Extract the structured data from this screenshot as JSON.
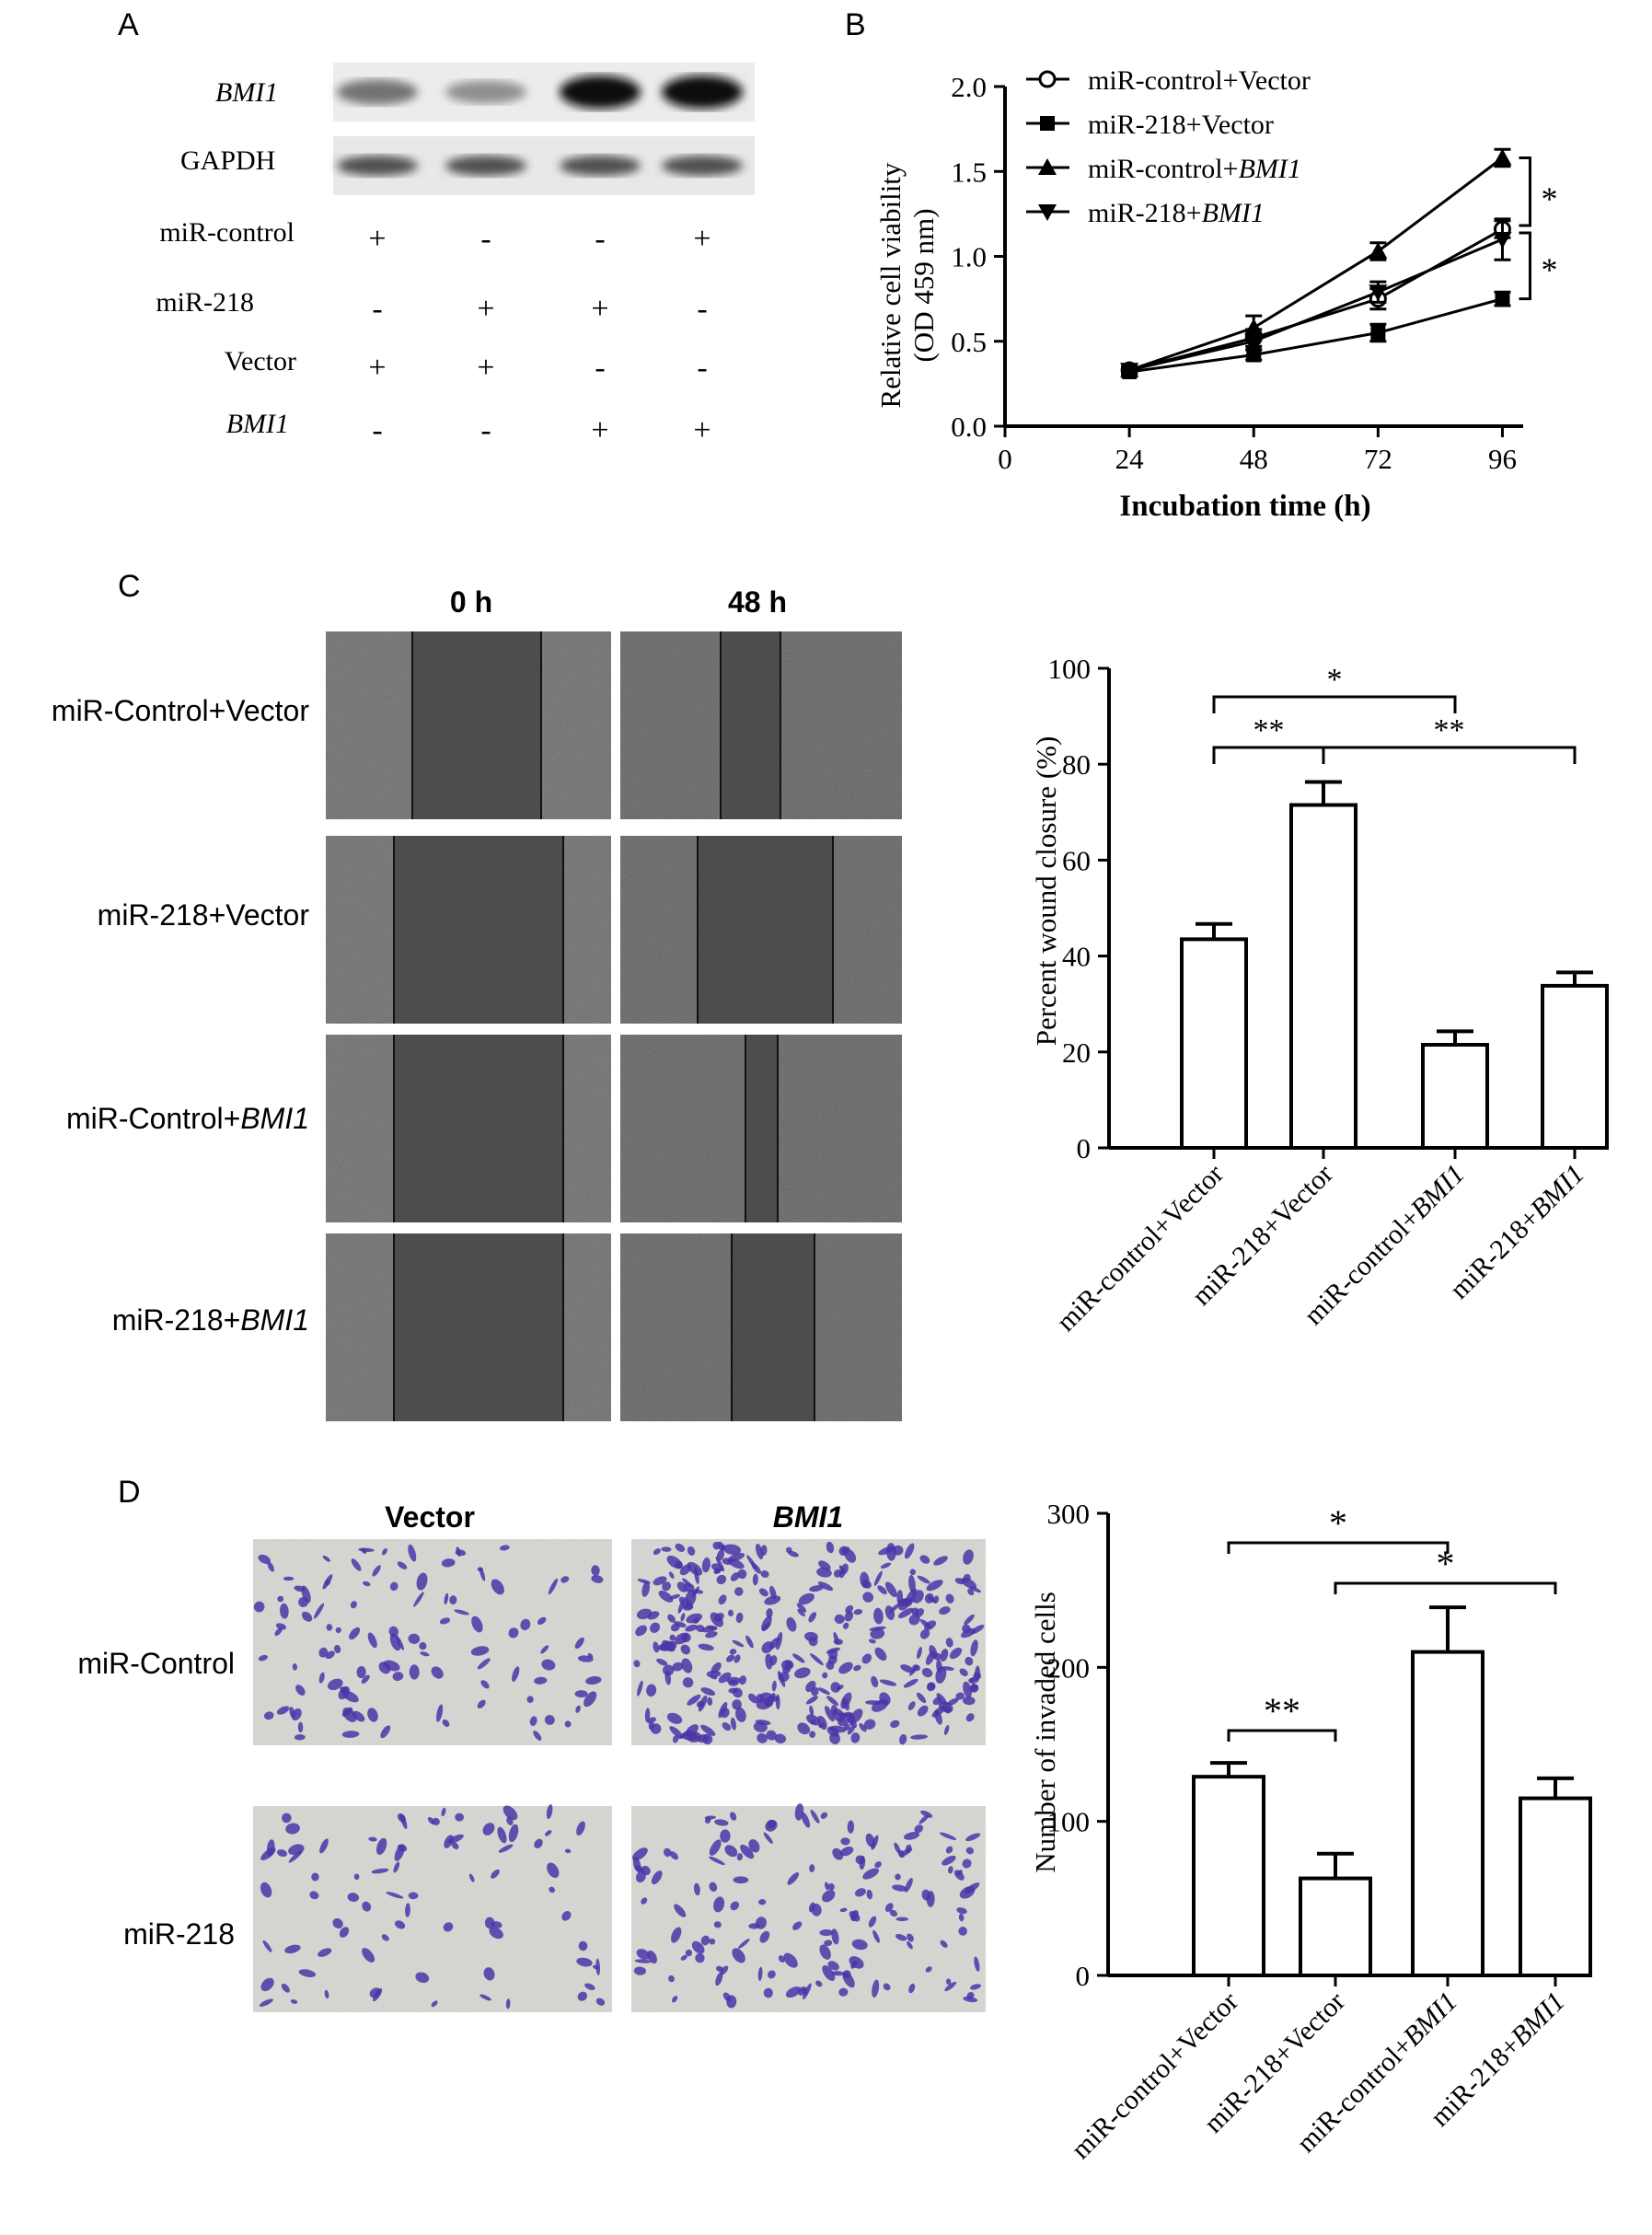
{
  "panel_letters": {
    "a": "A",
    "b": "B",
    "c": "C",
    "d": "D"
  },
  "panel_a": {
    "blot_labels": [
      "BMI1",
      "GAPDH"
    ],
    "condition_rows": [
      {
        "label": "miR-control",
        "marks": [
          "+",
          "-",
          "-",
          "+"
        ]
      },
      {
        "label": "miR-218",
        "marks": [
          "-",
          "+",
          "+",
          "-"
        ]
      },
      {
        "label": "Vector",
        "marks": [
          "+",
          "+",
          "-",
          "-"
        ]
      },
      {
        "label": "BMI1",
        "marks": [
          "-",
          "-",
          "+",
          "+"
        ]
      }
    ],
    "bmi1_band_intensity": [
      0.45,
      0.3,
      1.0,
      1.0
    ],
    "gapdh_band_intensity": [
      0.8,
      0.8,
      0.8,
      0.8
    ]
  },
  "panel_c_images": {
    "col_labels": [
      "0 h",
      "48 h"
    ],
    "row_labels": [
      {
        "prefix": "miR-Control+",
        "italic": "Vector",
        "plain": true
      },
      {
        "prefix": "miR-218+",
        "italic": "Vector",
        "plain": true
      },
      {
        "prefix": "miR-Control+",
        "italic": "BMI1",
        "plain": false
      },
      {
        "prefix": "miR-218+",
        "italic": "BMI1",
        "plain": false
      }
    ]
  },
  "panel_d_images": {
    "col_labels": [
      "Vector",
      "BMI1"
    ],
    "row_labels": [
      "miR-Control",
      "miR-218"
    ]
  },
  "chart_data": [
    {
      "type": "line",
      "panel": "B",
      "xlabel": "Incubation time (h)",
      "ylabel_line1": "Relative cell viability",
      "ylabel_line2": "(OD 459 nm)",
      "x": [
        24,
        48,
        72,
        96
      ],
      "xticks": [
        0,
        24,
        48,
        72,
        96
      ],
      "yticks": [
        0.0,
        0.5,
        1.0,
        1.5,
        2.0
      ],
      "ytick_labels": [
        "0.0",
        "0.5",
        "1.0",
        "1.5",
        "2.0"
      ],
      "ylim": [
        0,
        2.0
      ],
      "xlim": [
        0,
        100
      ],
      "legend_position": "top-left",
      "series": [
        {
          "name_prefix": "miR-control+",
          "name_italic": "",
          "name_plain": "Vector",
          "marker": "circle",
          "values": [
            0.33,
            0.52,
            0.75,
            1.16
          ],
          "err": [
            0.02,
            0.05,
            0.06,
            0.05
          ]
        },
        {
          "name_prefix": "miR-218+",
          "name_italic": "",
          "name_plain": "Vector",
          "marker": "square",
          "values": [
            0.32,
            0.42,
            0.55,
            0.75
          ],
          "err": [
            0.02,
            0.03,
            0.05,
            0.04
          ]
        },
        {
          "name_prefix": "miR-control+",
          "name_italic": "BMI1",
          "name_plain": "",
          "marker": "triangle-up",
          "values": [
            0.33,
            0.58,
            1.03,
            1.58
          ],
          "err": [
            0.02,
            0.07,
            0.05,
            0.05
          ]
        },
        {
          "name_prefix": "miR-218+",
          "name_italic": "BMI1",
          "name_plain": "",
          "marker": "triangle-down",
          "values": [
            0.33,
            0.5,
            0.79,
            1.1
          ],
          "err": [
            0.02,
            0.05,
            0.06,
            0.12
          ]
        }
      ],
      "significance": [
        "*",
        "*"
      ]
    },
    {
      "type": "bar",
      "panel": "C",
      "ylabel": "Percent wound closure (%)",
      "categories": [
        {
          "prefix": "miR-control+",
          "italic": "",
          "plain": "Vector"
        },
        {
          "prefix": "miR-218+",
          "italic": "",
          "plain": "Vector"
        },
        {
          "prefix": "miR-control+",
          "italic": "BMI1",
          "plain": ""
        },
        {
          "prefix": "miR-218+",
          "italic": "BMI1",
          "plain": ""
        }
      ],
      "values": [
        43.5,
        71.5,
        21.5,
        33.8
      ],
      "errors": [
        3.2,
        4.8,
        2.8,
        2.8
      ],
      "ylim": [
        0,
        100
      ],
      "yticks": [
        0,
        20,
        40,
        60,
        80,
        100
      ],
      "ytick_labels": [
        "0",
        "20",
        "40",
        "60",
        "80",
        "100"
      ],
      "significance": [
        {
          "from": 0,
          "to": 2,
          "label": "*"
        },
        {
          "from": 0,
          "to": 1,
          "label": "**"
        },
        {
          "from": 1,
          "to": 3,
          "label": "**"
        }
      ]
    },
    {
      "type": "bar",
      "panel": "D",
      "ylabel": "Number of invaded cells",
      "categories": [
        {
          "prefix": "miR-control+",
          "italic": "",
          "plain": "Vector"
        },
        {
          "prefix": "miR-218+",
          "italic": "",
          "plain": "Vector"
        },
        {
          "prefix": "miR-control+",
          "italic": "BMI1",
          "plain": ""
        },
        {
          "prefix": "miR-218+",
          "italic": "BMI1",
          "plain": ""
        }
      ],
      "values": [
        129,
        63,
        210,
        115
      ],
      "errors": [
        9,
        16,
        29,
        13
      ],
      "ylim": [
        0,
        300
      ],
      "yticks": [
        0,
        100,
        200,
        300
      ],
      "ytick_labels": [
        "0",
        "100",
        "200",
        "300"
      ],
      "significance": [
        {
          "from": 0,
          "to": 2,
          "label": "*"
        },
        {
          "from": 1,
          "to": 3,
          "label": "*"
        },
        {
          "from": 0,
          "to": 1,
          "label": "**"
        }
      ]
    }
  ]
}
